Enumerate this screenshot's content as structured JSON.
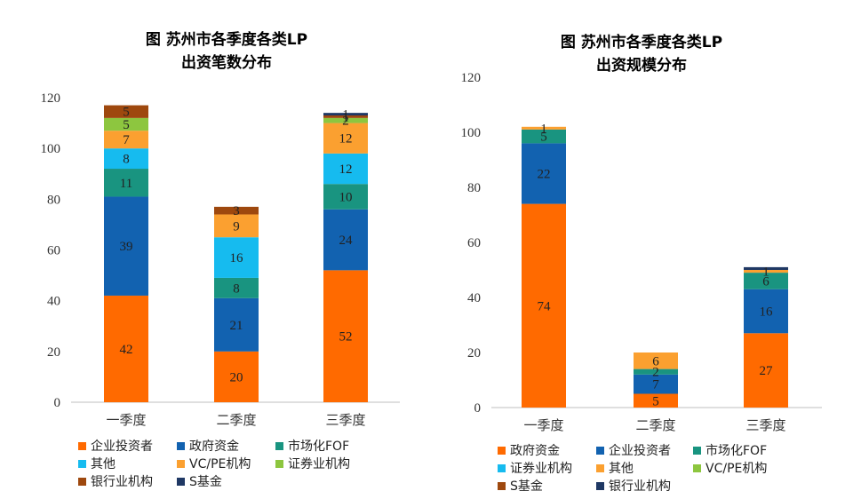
{
  "chart_data": [
    {
      "type": "bar",
      "stacked": true,
      "title": "图 苏州市各季度各类LP",
      "subtitle": "出资笔数分布",
      "categories": [
        "一季度",
        "二季度",
        "三季度"
      ],
      "ylim": [
        0,
        120
      ],
      "yticks": [
        0,
        20,
        40,
        60,
        80,
        100,
        120
      ],
      "series": [
        {
          "name": "企业投资者",
          "color": "#FF6A00",
          "values": [
            42,
            20,
            52
          ]
        },
        {
          "name": "政府资金",
          "color": "#1262B0",
          "values": [
            39,
            21,
            24
          ]
        },
        {
          "name": "市场化FOF",
          "color": "#199480",
          "values": [
            11,
            8,
            10
          ]
        },
        {
          "name": "其他",
          "color": "#16BBEF",
          "values": [
            8,
            16,
            12
          ]
        },
        {
          "name": "VC/PE机构",
          "color": "#FBA030",
          "values": [
            7,
            9,
            12
          ]
        },
        {
          "name": "证券业机构",
          "color": "#8DC63F",
          "values": [
            5,
            0,
            2
          ]
        },
        {
          "name": "银行业机构",
          "color": "#9E480E",
          "values": [
            5,
            3,
            1
          ]
        },
        {
          "name": "S基金",
          "color": "#1F3864",
          "values": [
            0,
            0,
            1
          ]
        }
      ],
      "legend_rows": [
        [
          "企业投资者",
          "政府资金",
          "市场化FOF"
        ],
        [
          "其他",
          "VC/PE机构",
          "证券业机构"
        ],
        [
          "银行业机构",
          "S基金"
        ]
      ]
    },
    {
      "type": "bar",
      "stacked": true,
      "title": "图 苏州市各季度各类LP",
      "subtitle": "出资规模分布",
      "categories": [
        "一季度",
        "二季度",
        "三季度"
      ],
      "ylim": [
        0,
        120
      ],
      "yticks": [
        0,
        20,
        40,
        60,
        80,
        100,
        120
      ],
      "series": [
        {
          "name": "政府资金",
          "color": "#FF6A00",
          "values": [
            74,
            5,
            27
          ]
        },
        {
          "name": "企业投资者",
          "color": "#1262B0",
          "values": [
            22,
            7,
            16
          ]
        },
        {
          "name": "市场化FOF",
          "color": "#199480",
          "values": [
            5,
            2,
            6
          ]
        },
        {
          "name": "证券业机构",
          "color": "#16BBEF",
          "values": [
            0,
            0,
            0
          ]
        },
        {
          "name": "其他",
          "color": "#FBA030",
          "values": [
            1,
            6,
            1
          ]
        },
        {
          "name": "VC/PE机构",
          "color": "#8DC63F",
          "values": [
            0,
            0,
            0
          ]
        },
        {
          "name": "S基金",
          "color": "#9E480E",
          "values": [
            0,
            0,
            0
          ]
        },
        {
          "name": "银行业机构",
          "color": "#1F3864",
          "values": [
            0,
            0,
            1
          ]
        }
      ],
      "labels_shown": [
        [
          {
            "series": "政府资金",
            "text": "74"
          },
          {
            "series": "企业投资者",
            "text": "22"
          },
          {
            "series": "市场化FOF",
            "text": "5"
          },
          {
            "series": "其他",
            "text": "1"
          }
        ],
        [
          {
            "series": "政府资金",
            "text": "5"
          },
          {
            "series": "企业投资者",
            "text": "7"
          },
          {
            "series": "市场化FOF",
            "text": "2"
          },
          {
            "series": "其他",
            "text": "6"
          }
        ],
        [
          {
            "series": "政府资金",
            "text": "27"
          },
          {
            "series": "企业投资者",
            "text": "16"
          },
          {
            "series": "市场化FOF",
            "text": "6"
          },
          {
            "series": "其他",
            "text": "1"
          }
        ]
      ],
      "legend_rows": [
        [
          "政府资金",
          "企业投资者",
          "市场化FOF"
        ],
        [
          "证券业机构",
          "其他",
          "VC/PE机构"
        ],
        [
          "S基金",
          "银行业机构"
        ]
      ]
    }
  ]
}
